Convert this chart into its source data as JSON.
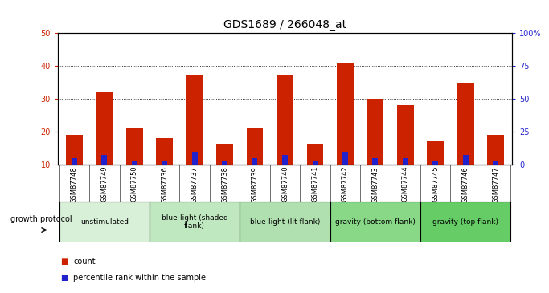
{
  "title": "GDS1689 / 266048_at",
  "samples": [
    "GSM87748",
    "GSM87749",
    "GSM87750",
    "GSM87736",
    "GSM87737",
    "GSM87738",
    "GSM87739",
    "GSM87740",
    "GSM87741",
    "GSM87742",
    "GSM87743",
    "GSM87744",
    "GSM87745",
    "GSM87746",
    "GSM87747"
  ],
  "count_values": [
    19,
    32,
    21,
    18,
    37,
    16,
    21,
    37,
    16,
    41,
    30,
    28,
    17,
    35,
    19
  ],
  "percentile_values": [
    12,
    13,
    11,
    11,
    14,
    11,
    12,
    13,
    11,
    14,
    12,
    12,
    11,
    13,
    11
  ],
  "groups": [
    {
      "label": "unstimulated",
      "start": 0,
      "end": 3,
      "color": "#d8f0d8"
    },
    {
      "label": "blue-light (shaded\nflank)",
      "start": 3,
      "end": 6,
      "color": "#c0e8c0"
    },
    {
      "label": "blue-light (lit flank)",
      "start": 6,
      "end": 9,
      "color": "#b0e0b0"
    },
    {
      "label": "gravity (bottom flank)",
      "start": 9,
      "end": 12,
      "color": "#88d888"
    },
    {
      "label": "gravity (top flank)",
      "start": 12,
      "end": 15,
      "color": "#66cc66"
    }
  ],
  "ylim_left": [
    10,
    50
  ],
  "ylim_right": [
    0,
    100
  ],
  "yticks_left": [
    10,
    20,
    30,
    40,
    50
  ],
  "yticks_right": [
    0,
    25,
    50,
    75,
    100
  ],
  "ytick_labels_left": [
    "10",
    "20",
    "30",
    "40",
    "50"
  ],
  "ytick_labels_right": [
    "0",
    "25",
    "50",
    "75",
    "100%"
  ],
  "bar_width": 0.55,
  "pct_bar_width": 0.18,
  "count_color": "#cc2200",
  "percentile_color": "#2222cc",
  "bg_color": "#cccccc",
  "white_bg": "#ffffff",
  "legend_count": "count",
  "legend_percentile": "percentile rank within the sample",
  "growth_protocol_label": "growth protocol",
  "title_fontsize": 10,
  "tick_fontsize": 7,
  "sample_fontsize": 6,
  "group_fontsize": 6.5
}
